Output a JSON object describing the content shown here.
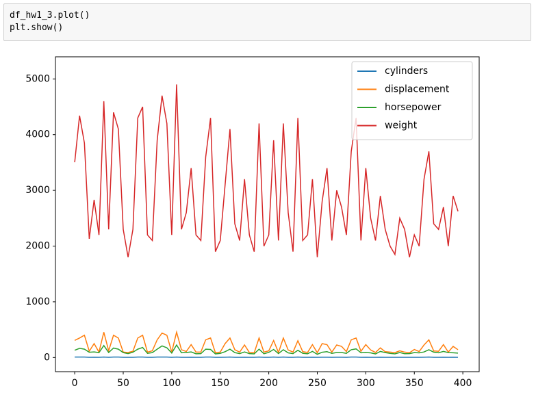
{
  "code": {
    "lines": [
      "df_hw1_3.plot()",
      "plt.show()"
    ]
  },
  "chart_data": {
    "type": "line",
    "x": [
      0,
      5,
      10,
      15,
      20,
      25,
      30,
      35,
      40,
      45,
      50,
      55,
      60,
      65,
      70,
      75,
      80,
      85,
      90,
      95,
      100,
      105,
      110,
      115,
      120,
      125,
      130,
      135,
      140,
      145,
      150,
      155,
      160,
      165,
      170,
      175,
      180,
      185,
      190,
      195,
      200,
      205,
      210,
      215,
      220,
      225,
      230,
      235,
      240,
      245,
      250,
      255,
      260,
      265,
      270,
      275,
      280,
      285,
      290,
      295,
      300,
      305,
      310,
      315,
      320,
      325,
      330,
      335,
      340,
      345,
      350,
      355,
      360,
      365,
      370,
      375,
      380,
      385,
      390,
      395
    ],
    "series": [
      {
        "name": "cylinders",
        "color": "#1f77b4",
        "values": [
          8,
          8,
          8,
          4,
          6,
          4,
          8,
          4,
          8,
          8,
          4,
          4,
          4,
          8,
          8,
          4,
          4,
          8,
          8,
          8,
          4,
          8,
          4,
          4,
          6,
          4,
          4,
          8,
          8,
          4,
          4,
          6,
          8,
          4,
          4,
          6,
          4,
          4,
          8,
          4,
          4,
          8,
          4,
          8,
          4,
          4,
          8,
          4,
          4,
          6,
          4,
          6,
          6,
          4,
          6,
          6,
          4,
          8,
          8,
          4,
          6,
          4,
          4,
          6,
          4,
          4,
          4,
          4,
          4,
          4,
          4,
          4,
          6,
          8,
          4,
          4,
          6,
          4,
          6,
          4
        ]
      },
      {
        "name": "displacement",
        "color": "#ff7f0e",
        "values": [
          307,
          350,
          400,
          113,
          250,
          97,
          455,
          121,
          400,
          350,
          98,
          90,
          113,
          350,
          400,
          97,
          121,
          318,
          440,
          400,
          98,
          455,
          140,
          108,
          232,
          97,
          98,
          318,
          351,
          85,
          97,
          250,
          350,
          140,
          97,
          225,
          91,
          85,
          351,
          98,
          120,
          305,
          89,
          350,
          135,
          98,
          302,
          105,
          91,
          231,
          86,
          250,
          231,
          97,
          225,
          200,
          107,
          318,
          350,
          112,
          232,
          135,
          91,
          173,
          105,
          98,
          89,
          120,
          97,
          86,
          144,
          108,
          225,
          318,
          119,
          112,
          232,
          98,
          200,
          140
        ]
      },
      {
        "name": "horsepower",
        "color": "#2ca02c",
        "values": [
          130,
          165,
          150,
          95,
          100,
          88,
          215,
          90,
          170,
          150,
          88,
          70,
          95,
          150,
          180,
          75,
          88,
          150,
          208,
          175,
          80,
          225,
          86,
          90,
          100,
          67,
          70,
          150,
          145,
          65,
          75,
          105,
          150,
          88,
          70,
          100,
          70,
          65,
          150,
          68,
          92,
          145,
          71,
          140,
          84,
          70,
          130,
          76,
          67,
          110,
          58,
          95,
          105,
          75,
          90,
          90,
          75,
          140,
          155,
          85,
          90,
          84,
          65,
          110,
          88,
          75,
          65,
          90,
          68,
          70,
          88,
          84,
          100,
          140,
          96,
          85,
          110,
          88,
          85,
          79
        ]
      },
      {
        "name": "weight",
        "color": "#d62728",
        "values": [
          3504,
          4341,
          3850,
          2130,
          2830,
          2200,
          4600,
          2300,
          4400,
          4100,
          2300,
          1800,
          2300,
          4300,
          4500,
          2200,
          2100,
          3900,
          4700,
          4200,
          2200,
          4900,
          2300,
          2600,
          3400,
          2200,
          2100,
          3600,
          4300,
          1900,
          2100,
          3100,
          4100,
          2400,
          2100,
          3200,
          2200,
          1900,
          4200,
          2000,
          2200,
          3900,
          2100,
          4200,
          2600,
          1900,
          4300,
          2100,
          2200,
          3200,
          1800,
          2800,
          3400,
          2100,
          3000,
          2700,
          2200,
          3700,
          4300,
          2100,
          3400,
          2500,
          2100,
          2900,
          2300,
          2000,
          1850,
          2500,
          2300,
          1800,
          2200,
          2000,
          3200,
          3700,
          2400,
          2300,
          2700,
          2000,
          2900,
          2625
        ]
      }
    ],
    "xlim": [
      -19.85,
      416.85
    ],
    "xticks": [
      0,
      50,
      100,
      150,
      200,
      250,
      300,
      350,
      400
    ],
    "ylim": [
      -254,
      5397
    ],
    "yticks": [
      0,
      1000,
      2000,
      3000,
      4000,
      5000
    ],
    "legend": "upper right"
  }
}
